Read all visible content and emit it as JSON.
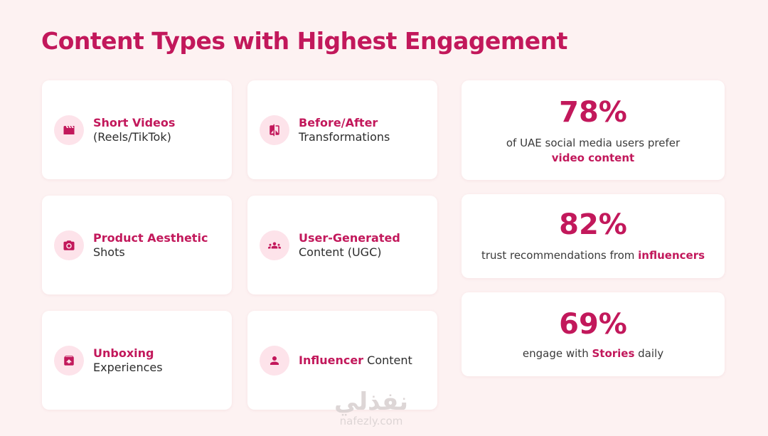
{
  "title": "Content Types with Highest Engagement",
  "content_types": [
    {
      "icon": "clapperboard-icon",
      "highlight": "Short Videos",
      "rest": "(Reels/TikTok)"
    },
    {
      "icon": "before-after-icon",
      "highlight": "Before/After",
      "rest": "Transformations"
    },
    {
      "icon": "camera-icon",
      "highlight": "Product Aesthetic",
      "rest": "Shots"
    },
    {
      "icon": "group-icon",
      "highlight": "User-Generated",
      "rest": "Content (UGC)"
    },
    {
      "icon": "package-icon",
      "highlight": "Unboxing",
      "rest": "Experiences"
    },
    {
      "icon": "person-icon",
      "highlight": "Influencer",
      "rest": " Content"
    }
  ],
  "stats": [
    {
      "value": "78%",
      "line1": "of UAE social media users prefer",
      "line2_highlight": "video content"
    },
    {
      "value": "82%",
      "prefix": "trust recommendations from ",
      "highlight": "influencers",
      "suffix": ""
    },
    {
      "value": "69%",
      "prefix": "engage with ",
      "highlight": "Stories",
      "suffix": " daily"
    }
  ],
  "watermark": {
    "arabic": "نفذلي",
    "url": "nafezly.com"
  },
  "colors": {
    "accent": "#c2185b",
    "background": "#fdf2f2",
    "icon_bg": "#fde3ea"
  }
}
